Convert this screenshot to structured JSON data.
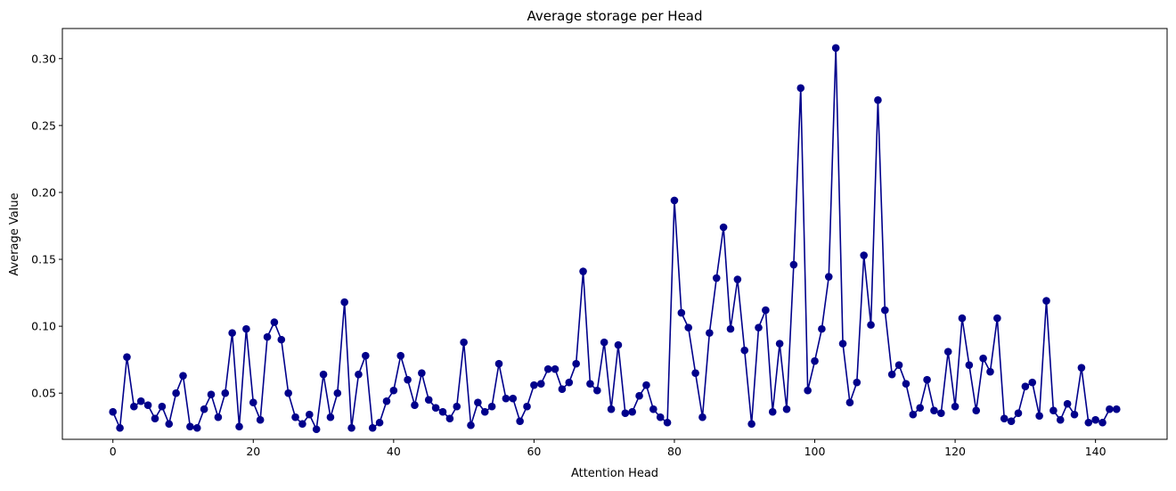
{
  "chart_data": {
    "type": "line",
    "title": "Average storage per Head",
    "xlabel": "Attention Head",
    "ylabel": "Average Value",
    "xlim": [
      -7.2,
      150.2
    ],
    "ylim": [
      0.0155,
      0.3225
    ],
    "xticks": [
      0,
      20,
      40,
      60,
      80,
      100,
      120,
      140
    ],
    "yticks": [
      0.05,
      0.1,
      0.15,
      0.2,
      0.25,
      0.3
    ],
    "ytick_labels": [
      "0.05",
      "0.10",
      "0.15",
      "0.20",
      "0.25",
      "0.30"
    ],
    "grid": false,
    "series": [
      {
        "marker": "circle",
        "color": "#00008b",
        "x": [
          0,
          1,
          2,
          3,
          4,
          5,
          6,
          7,
          8,
          9,
          10,
          11,
          12,
          13,
          14,
          15,
          16,
          17,
          18,
          19,
          20,
          21,
          22,
          23,
          24,
          25,
          26,
          27,
          28,
          29,
          30,
          31,
          32,
          33,
          34,
          35,
          36,
          37,
          38,
          39,
          40,
          41,
          42,
          43,
          44,
          45,
          46,
          47,
          48,
          49,
          50,
          51,
          52,
          53,
          54,
          55,
          56,
          57,
          58,
          59,
          60,
          61,
          62,
          63,
          64,
          65,
          66,
          67,
          68,
          69,
          70,
          71,
          72,
          73,
          74,
          75,
          76,
          77,
          78,
          79,
          80,
          81,
          82,
          83,
          84,
          85,
          86,
          87,
          88,
          89,
          90,
          91,
          92,
          93,
          94,
          95,
          96,
          97,
          98,
          99,
          100,
          101,
          102,
          103,
          104,
          105,
          106,
          107,
          108,
          109,
          110,
          111,
          112,
          113,
          114,
          115,
          116,
          117,
          118,
          119,
          120,
          121,
          122,
          123,
          124,
          125,
          126,
          127,
          128,
          129,
          130,
          131,
          132,
          133,
          134,
          135,
          136,
          137,
          138,
          139,
          140,
          141,
          142,
          143
        ],
        "values": [
          0.036,
          0.024,
          0.077,
          0.04,
          0.044,
          0.041,
          0.031,
          0.04,
          0.027,
          0.05,
          0.063,
          0.025,
          0.024,
          0.038,
          0.049,
          0.032,
          0.05,
          0.095,
          0.025,
          0.098,
          0.043,
          0.03,
          0.092,
          0.103,
          0.09,
          0.05,
          0.032,
          0.027,
          0.034,
          0.023,
          0.064,
          0.032,
          0.05,
          0.118,
          0.024,
          0.064,
          0.078,
          0.024,
          0.028,
          0.044,
          0.052,
          0.078,
          0.06,
          0.041,
          0.065,
          0.045,
          0.039,
          0.036,
          0.031,
          0.04,
          0.088,
          0.026,
          0.043,
          0.036,
          0.04,
          0.072,
          0.046,
          0.046,
          0.029,
          0.04,
          0.056,
          0.057,
          0.068,
          0.068,
          0.053,
          0.058,
          0.072,
          0.141,
          0.057,
          0.052,
          0.088,
          0.038,
          0.086,
          0.035,
          0.036,
          0.048,
          0.056,
          0.038,
          0.032,
          0.028,
          0.194,
          0.11,
          0.099,
          0.065,
          0.032,
          0.095,
          0.136,
          0.174,
          0.098,
          0.135,
          0.082,
          0.027,
          0.099,
          0.112,
          0.036,
          0.087,
          0.038,
          0.146,
          0.278,
          0.052,
          0.074,
          0.098,
          0.137,
          0.308,
          0.087,
          0.043,
          0.058,
          0.153,
          0.101,
          0.269,
          0.112,
          0.064,
          0.071,
          0.057,
          0.034,
          0.039,
          0.06,
          0.037,
          0.035,
          0.081,
          0.04,
          0.106,
          0.071,
          0.037,
          0.076,
          0.066,
          0.106,
          0.031,
          0.029,
          0.035,
          0.055,
          0.058,
          0.033,
          0.119,
          0.037,
          0.03,
          0.042,
          0.034,
          0.069,
          0.028,
          0.03,
          0.028,
          0.038,
          0.038
        ]
      }
    ]
  }
}
